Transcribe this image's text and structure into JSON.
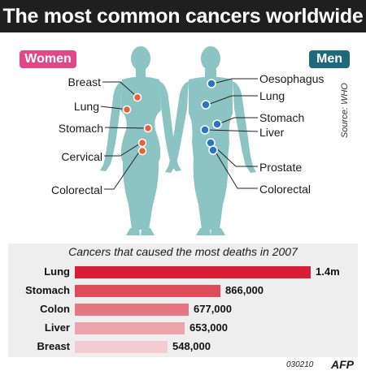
{
  "title": "The most common cancers worldwide",
  "women": {
    "badge": "Women",
    "color": "#e0488a",
    "labels": [
      "Breast",
      "Lung",
      "Stomach",
      "Cervical",
      "Colorectal"
    ]
  },
  "men": {
    "badge": "Men",
    "color": "#1e6a7a",
    "labels": [
      "Oesophagus",
      "Lung",
      "Stomach",
      "Liver",
      "Prostate",
      "Colorectal"
    ]
  },
  "source": "Source: WHO",
  "footer": {
    "code": "030210",
    "logo": "AFP"
  },
  "colors": {
    "body": "#8cc4c4",
    "women_spot": "#e8603a",
    "men_spot": "#2d73c0",
    "bars": [
      "#d81e34",
      "#e04b5a",
      "#e67682",
      "#eda3ab",
      "#f4cbd0"
    ]
  },
  "chart_data": {
    "type": "bar",
    "title": "Cancers that caused the most deaths in 2007",
    "categories": [
      "Lung",
      "Stomach",
      "Colon",
      "Liver",
      "Breast"
    ],
    "values": [
      1400000,
      866000,
      677000,
      653000,
      548000
    ],
    "value_labels": [
      "1.4m",
      "866,000",
      "677,000",
      "653,000",
      "548,000"
    ],
    "orientation": "horizontal",
    "xlim": [
      0,
      1400000
    ]
  }
}
